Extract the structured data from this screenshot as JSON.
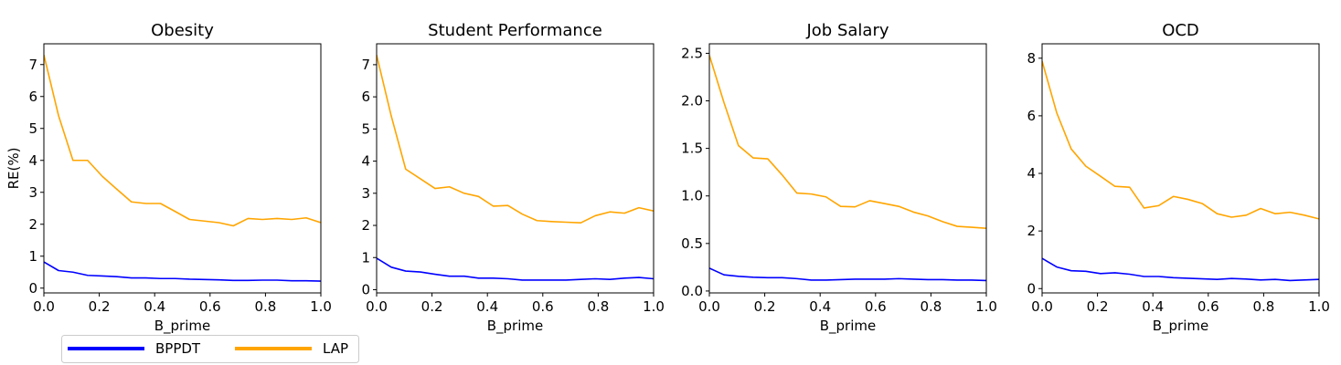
{
  "chart_data": [
    {
      "type": "line",
      "title": "Obesity",
      "xlabel": "B_prime",
      "ylabel": "RE(%)",
      "xlim": [
        0,
        1
      ],
      "ylim": [
        -0.15,
        7.65
      ],
      "xticks": [
        0.0,
        0.2,
        0.4,
        0.6,
        0.8,
        1.0
      ],
      "xtick_labels": [
        "0.0",
        "0.2",
        "0.4",
        "0.6",
        "0.8",
        "1.0"
      ],
      "yticks": [
        0,
        1,
        2,
        3,
        4,
        5,
        6,
        7
      ],
      "ytick_labels": [
        "0",
        "1",
        "2",
        "3",
        "4",
        "5",
        "6",
        "7"
      ],
      "x": [
        0.0,
        0.053,
        0.105,
        0.158,
        0.211,
        0.263,
        0.316,
        0.368,
        0.421,
        0.474,
        0.526,
        0.579,
        0.632,
        0.684,
        0.737,
        0.789,
        0.842,
        0.895,
        0.947,
        1.0
      ],
      "series": [
        {
          "name": "BPPDT",
          "color": "#0000ff",
          "values": [
            0.82,
            0.55,
            0.5,
            0.4,
            0.38,
            0.36,
            0.32,
            0.32,
            0.3,
            0.3,
            0.28,
            0.27,
            0.26,
            0.24,
            0.24,
            0.25,
            0.25,
            0.23,
            0.23,
            0.22
          ]
        },
        {
          "name": "LAP",
          "color": "#ffa500",
          "values": [
            7.3,
            5.4,
            4.0,
            4.0,
            3.5,
            3.1,
            2.7,
            2.65,
            2.65,
            2.4,
            2.15,
            2.1,
            2.05,
            1.95,
            2.18,
            2.15,
            2.18,
            2.15,
            2.2,
            2.05
          ]
        }
      ]
    },
    {
      "type": "line",
      "title": "Student Performance",
      "xlabel": "B_prime",
      "ylabel": "",
      "xlim": [
        0,
        1
      ],
      "ylim": [
        -0.1,
        7.65
      ],
      "xticks": [
        0.0,
        0.2,
        0.4,
        0.6,
        0.8,
        1.0
      ],
      "xtick_labels": [
        "0.0",
        "0.2",
        "0.4",
        "0.6",
        "0.8",
        "1.0"
      ],
      "yticks": [
        0,
        1,
        2,
        3,
        4,
        5,
        6,
        7
      ],
      "ytick_labels": [
        "0",
        "1",
        "2",
        "3",
        "4",
        "5",
        "6",
        "7"
      ],
      "x": [
        0.0,
        0.053,
        0.105,
        0.158,
        0.211,
        0.263,
        0.316,
        0.368,
        0.421,
        0.474,
        0.526,
        0.579,
        0.632,
        0.684,
        0.737,
        0.789,
        0.842,
        0.895,
        0.947,
        1.0
      ],
      "series": [
        {
          "name": "BPPDT",
          "color": "#0000ff",
          "values": [
            0.98,
            0.7,
            0.58,
            0.55,
            0.48,
            0.42,
            0.42,
            0.36,
            0.36,
            0.34,
            0.3,
            0.3,
            0.3,
            0.3,
            0.32,
            0.34,
            0.32,
            0.36,
            0.38,
            0.34
          ]
        },
        {
          "name": "LAP",
          "color": "#ffa500",
          "values": [
            7.3,
            5.4,
            3.75,
            3.45,
            3.15,
            3.2,
            3.0,
            2.9,
            2.6,
            2.62,
            2.35,
            2.15,
            2.12,
            2.1,
            2.08,
            2.3,
            2.42,
            2.38,
            2.55,
            2.45
          ]
        }
      ]
    },
    {
      "type": "line",
      "title": "Job Salary",
      "xlabel": "B_prime",
      "ylabel": "",
      "xlim": [
        0,
        1
      ],
      "ylim": [
        -0.02,
        2.6
      ],
      "xticks": [
        0.0,
        0.2,
        0.4,
        0.6,
        0.8,
        1.0
      ],
      "xtick_labels": [
        "0.0",
        "0.2",
        "0.4",
        "0.6",
        "0.8",
        "1.0"
      ],
      "yticks": [
        0.0,
        0.5,
        1.0,
        1.5,
        2.0,
        2.5
      ],
      "ytick_labels": [
        "0.0",
        "0.5",
        "1.0",
        "1.5",
        "2.0",
        "2.5"
      ],
      "x": [
        0.0,
        0.053,
        0.105,
        0.158,
        0.211,
        0.263,
        0.316,
        0.368,
        0.421,
        0.474,
        0.526,
        0.579,
        0.632,
        0.684,
        0.737,
        0.789,
        0.842,
        0.895,
        0.947,
        1.0
      ],
      "series": [
        {
          "name": "BPPDT",
          "color": "#0000ff",
          "values": [
            0.24,
            0.17,
            0.155,
            0.145,
            0.14,
            0.14,
            0.13,
            0.115,
            0.115,
            0.12,
            0.125,
            0.125,
            0.125,
            0.13,
            0.125,
            0.12,
            0.12,
            0.115,
            0.115,
            0.11
          ]
        },
        {
          "name": "LAP",
          "color": "#ffa500",
          "values": [
            2.48,
            1.98,
            1.53,
            1.4,
            1.39,
            1.22,
            1.03,
            1.02,
            0.99,
            0.89,
            0.885,
            0.95,
            0.92,
            0.89,
            0.83,
            0.79,
            0.73,
            0.68,
            0.67,
            0.66
          ]
        }
      ]
    },
    {
      "type": "line",
      "title": "OCD",
      "xlabel": "B_prime",
      "ylabel": "",
      "xlim": [
        0,
        1
      ],
      "ylim": [
        -0.15,
        8.5
      ],
      "xticks": [
        0.0,
        0.2,
        0.4,
        0.6,
        0.8,
        1.0
      ],
      "xtick_labels": [
        "0.0",
        "0.2",
        "0.4",
        "0.6",
        "0.8",
        "1.0"
      ],
      "yticks": [
        0,
        2,
        4,
        6,
        8
      ],
      "ytick_labels": [
        "0",
        "2",
        "4",
        "6",
        "8"
      ],
      "x": [
        0.0,
        0.053,
        0.105,
        0.158,
        0.211,
        0.263,
        0.316,
        0.368,
        0.421,
        0.474,
        0.526,
        0.579,
        0.632,
        0.684,
        0.737,
        0.789,
        0.842,
        0.895,
        0.947,
        1.0
      ],
      "series": [
        {
          "name": "BPPDT",
          "color": "#0000ff",
          "values": [
            1.05,
            0.75,
            0.62,
            0.6,
            0.52,
            0.55,
            0.5,
            0.42,
            0.42,
            0.38,
            0.36,
            0.34,
            0.32,
            0.35,
            0.33,
            0.3,
            0.32,
            0.28,
            0.3,
            0.32
          ]
        },
        {
          "name": "LAP",
          "color": "#ffa500",
          "values": [
            7.9,
            6.1,
            4.85,
            4.25,
            3.9,
            3.55,
            3.52,
            2.8,
            2.88,
            3.2,
            3.1,
            2.95,
            2.6,
            2.48,
            2.55,
            2.78,
            2.6,
            2.65,
            2.55,
            2.42
          ]
        }
      ]
    }
  ],
  "legend": {
    "placement": "bottom-left",
    "entries": [
      {
        "label": "BPPDT",
        "color": "#0000ff"
      },
      {
        "label": "LAP",
        "color": "#ffa500"
      }
    ]
  }
}
